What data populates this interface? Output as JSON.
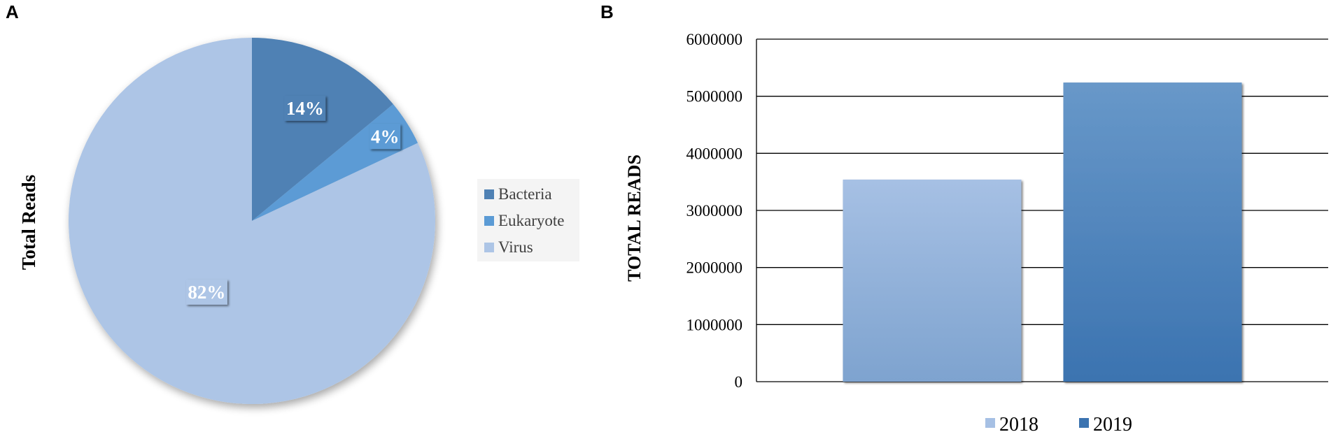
{
  "panels": {
    "a_label": "A",
    "b_label": "B"
  },
  "colors": {
    "bacteria": "#4f81b4",
    "eukaryote": "#5b9bd5",
    "virus": "#adc5e6",
    "bar2018_top": "#a6c0e4",
    "bar2018_bottom": "#7ea3cf",
    "bar2019_top": "#6898c9",
    "bar2019_bottom": "#3b73b0"
  },
  "chart_data": [
    {
      "type": "pie",
      "ylabel": "Total Reads",
      "slices": [
        {
          "name": "Bacteria",
          "value": 14,
          "label": "14%",
          "color": "#4f81b4"
        },
        {
          "name": "Eukaryote",
          "value": 4,
          "label": "4%",
          "color": "#5b9bd5"
        },
        {
          "name": "Virus",
          "value": 82,
          "label": "82%",
          "color": "#adc5e6"
        }
      ],
      "legend": {
        "placement": "right",
        "items": [
          "Bacteria",
          "Eukaryote",
          "Virus"
        ]
      }
    },
    {
      "type": "bar",
      "ylabel": "TOTAL READS",
      "ylim": [
        0,
        6000000
      ],
      "yticks": [
        "0",
        "1000000",
        "2000000",
        "3000000",
        "4000000",
        "5000000",
        "6000000"
      ],
      "grid": true,
      "series": [
        {
          "name": "2018",
          "values": [
            3540000
          ]
        },
        {
          "name": "2019",
          "values": [
            5240000
          ]
        }
      ],
      "legend": {
        "placement": "bottom",
        "items": [
          "2018",
          "2019"
        ]
      }
    }
  ]
}
